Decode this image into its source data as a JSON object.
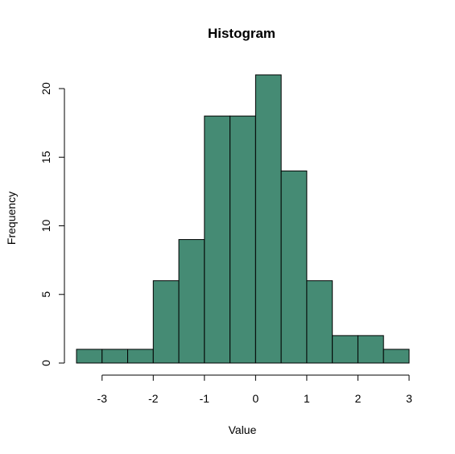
{
  "chart_data": {
    "type": "bar",
    "title": "Histogram",
    "xlabel": "Value",
    "ylabel": "Frequency",
    "bar_color": "#458B74",
    "bin_edges": [
      -3.5,
      -3,
      -2.5,
      -2,
      -1.5,
      -1,
      -0.5,
      0,
      0.5,
      1,
      1.5,
      2,
      2.5,
      3
    ],
    "values": [
      1,
      1,
      1,
      6,
      9,
      18,
      18,
      21,
      14,
      6,
      2,
      2,
      1
    ],
    "xlim": [
      -3.5,
      3
    ],
    "ylim": [
      0,
      21
    ],
    "x_ticks": [
      -3,
      -2,
      -1,
      0,
      1,
      2,
      3
    ],
    "x_tick_labels": [
      "-3",
      "-2",
      "-1",
      "0",
      "1",
      "2",
      "3"
    ],
    "y_ticks": [
      0,
      5,
      10,
      15,
      20
    ],
    "y_tick_labels": [
      "0",
      "5",
      "10",
      "15",
      "20"
    ],
    "grid": false,
    "legend": "none"
  }
}
